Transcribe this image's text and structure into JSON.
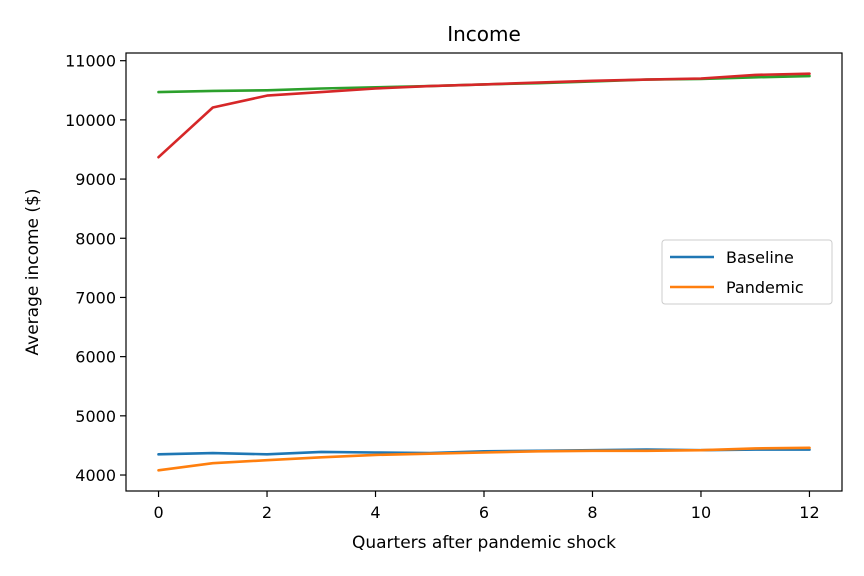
{
  "chart_data": {
    "type": "line",
    "title": "Income",
    "xlabel": "Quarters after pandemic shock",
    "ylabel": "Average income ($)",
    "xlim": [
      -0.6,
      12.6
    ],
    "ylim": [
      3730,
      11130
    ],
    "x_ticks": [
      0,
      2,
      4,
      6,
      8,
      10,
      12
    ],
    "y_ticks": [
      4000,
      5000,
      6000,
      7000,
      8000,
      9000,
      10000,
      11000
    ],
    "grid": false,
    "legend": "right",
    "x": [
      0,
      1,
      2,
      3,
      4,
      5,
      6,
      7,
      8,
      9,
      10,
      11,
      12
    ],
    "series": [
      {
        "name": "Baseline",
        "color": "#1f77b4",
        "in_legend": true,
        "values": [
          4350,
          4370,
          4350,
          4390,
          4380,
          4370,
          4400,
          4410,
          4420,
          4430,
          4420,
          4430,
          4430
        ]
      },
      {
        "name": "Pandemic",
        "color": "#ff7f0e",
        "in_legend": true,
        "values": [
          4080,
          4200,
          4250,
          4300,
          4340,
          4360,
          4380,
          4400,
          4410,
          4410,
          4420,
          4450,
          4460
        ]
      },
      {
        "name": "",
        "color": "#2ca02c",
        "in_legend": false,
        "values": [
          10470,
          10490,
          10500,
          10530,
          10550,
          10570,
          10600,
          10620,
          10650,
          10680,
          10690,
          10720,
          10740
        ]
      },
      {
        "name": "",
        "color": "#d62728",
        "in_legend": false,
        "values": [
          9370,
          10210,
          10410,
          10470,
          10530,
          10570,
          10600,
          10630,
          10660,
          10680,
          10700,
          10760,
          10780
        ]
      }
    ]
  }
}
